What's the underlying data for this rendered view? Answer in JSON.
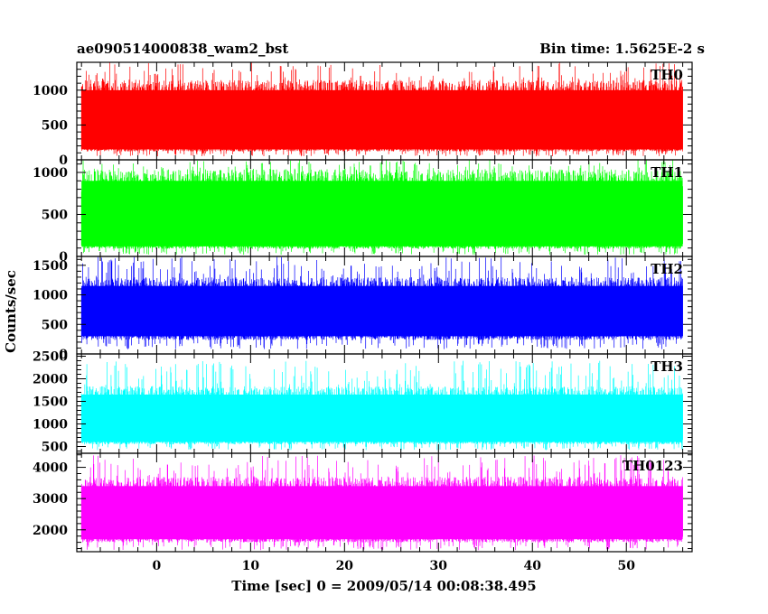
{
  "chart_data": {
    "type": "line",
    "title_left": "ae090514000838_wam2_bst",
    "title_right": "Bin time: 1.5625E-2 s",
    "xlabel": "Time [sec] 0 = 2009/05/14 00:08:38.495",
    "ylabel": "Counts/sec",
    "xlim": [
      -8.5,
      57
    ],
    "data_x_range": [
      -8,
      56
    ],
    "x_ticks": [
      0,
      10,
      20,
      30,
      40,
      50
    ],
    "panels": [
      {
        "name": "TH0",
        "color": "#ff0000",
        "ylim": [
          0,
          1400
        ],
        "y_ticks": [
          0,
          500,
          1000
        ],
        "level_low": 150,
        "level_high": 1000,
        "min": 50,
        "max": 1400
      },
      {
        "name": "TH1",
        "color": "#00ff00",
        "ylim": [
          0,
          1150
        ],
        "y_ticks": [
          0,
          500,
          1000
        ],
        "level_low": 120,
        "level_high": 900,
        "min": 20,
        "max": 1150
      },
      {
        "name": "TH2",
        "color": "#0000ff",
        "ylim": [
          0,
          1650
        ],
        "y_ticks": [
          0,
          500,
          1000,
          1500
        ],
        "level_low": 300,
        "level_high": 1150,
        "min": 80,
        "max": 1650
      },
      {
        "name": "TH3",
        "color": "#00ffff",
        "ylim": [
          350,
          2550
        ],
        "y_ticks": [
          500,
          1000,
          1500,
          2000,
          2500
        ],
        "level_low": 600,
        "level_high": 1650,
        "min": 420,
        "max": 2400
      },
      {
        "name": "TH0123",
        "color": "#ff00ff",
        "ylim": [
          1300,
          4450
        ],
        "y_ticks": [
          2000,
          3000,
          4000
        ],
        "level_low": 1700,
        "level_high": 3400,
        "min": 1350,
        "max": 4400
      }
    ]
  }
}
